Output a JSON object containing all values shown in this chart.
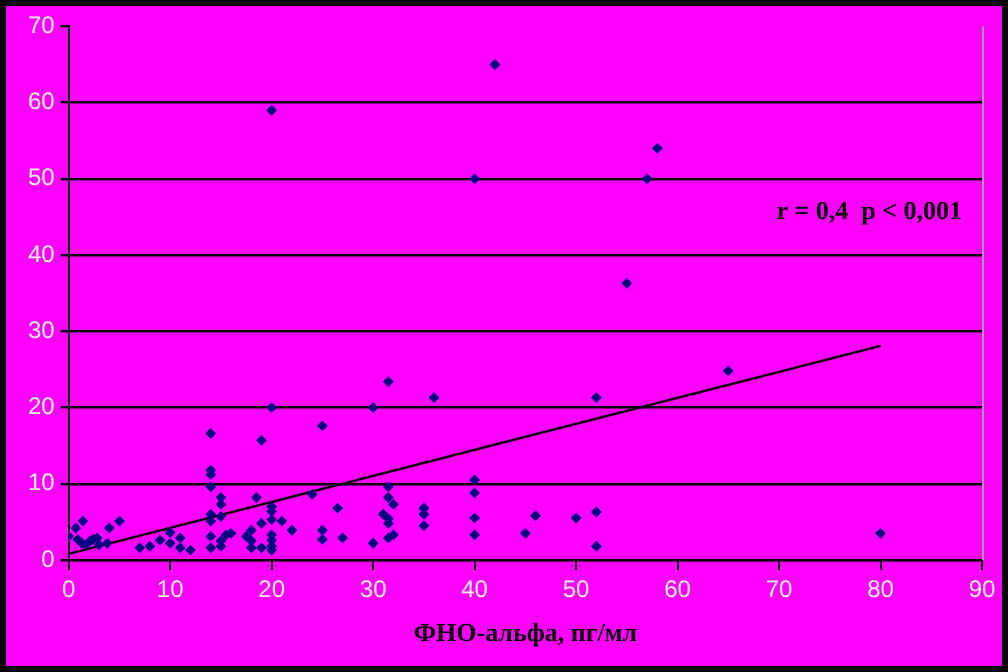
{
  "chart_data": {
    "type": "scatter",
    "xlabel": "ФНО-альфа, пг/мл",
    "annotations": [
      "r = 0,4  p < 0,001"
    ],
    "xlim": [
      0,
      90
    ],
    "xticks": [
      0,
      10,
      20,
      30,
      40,
      50,
      60,
      70,
      80,
      90
    ],
    "ylim": [
      0,
      70
    ],
    "yticks": [
      0,
      10,
      20,
      30,
      40,
      50,
      60,
      70
    ],
    "grid": "y",
    "legend": false,
    "marker": "diamond",
    "series": [
      {
        "color": "#000080",
        "x": [
          0,
          0.7,
          0.9,
          1.4,
          1.3,
          1.7,
          2.1,
          2.4,
          2.8,
          3,
          4,
          5,
          3.8,
          7,
          8,
          9,
          10,
          10,
          11,
          11,
          12,
          14,
          14,
          14,
          14,
          14,
          14,
          14,
          14,
          15,
          15,
          15,
          15,
          15,
          15.5,
          16,
          17.5,
          18,
          18,
          18,
          18.5,
          19,
          19,
          19,
          20,
          20,
          20,
          20,
          20,
          20,
          20,
          20,
          21,
          22,
          24,
          25,
          25,
          25,
          26.5,
          27,
          30,
          30,
          31,
          31.5,
          31.5,
          31.5,
          31.5,
          31.5,
          31.5,
          32,
          32,
          36,
          35,
          35,
          35,
          40,
          40,
          40,
          40,
          45,
          46,
          50,
          52,
          52,
          52,
          65,
          80,
          20,
          42,
          40,
          55,
          57,
          58
        ],
        "values": [
          3.1,
          4.2,
          2.7,
          5.1,
          2.2,
          2,
          2.5,
          2.7,
          2.9,
          2,
          4.2,
          5.1,
          2.2,
          1.6,
          1.8,
          2.6,
          2.2,
          3.6,
          2.9,
          1.6,
          1.3,
          16.6,
          11.8,
          11.2,
          9.6,
          6,
          5.1,
          3.1,
          1.6,
          8.2,
          7.3,
          5.7,
          2.5,
          1.8,
          3.3,
          3.5,
          3.1,
          3.9,
          2.5,
          1.6,
          8.2,
          15.7,
          4.8,
          1.6,
          20,
          7,
          6.4,
          5.3,
          3.3,
          2.6,
          1.8,
          1.3,
          5.1,
          3.9,
          8.6,
          17.6,
          3.9,
          2.7,
          6.8,
          2.9,
          20,
          2.2,
          6,
          23.4,
          9.6,
          8.2,
          5.4,
          4.8,
          2.9,
          3.3,
          7.3,
          21.3,
          6.8,
          6,
          4.5,
          10.5,
          8.8,
          5.5,
          3.3,
          3.5,
          5.8,
          5.5,
          21.3,
          6.3,
          1.8,
          24.8,
          3.5,
          59,
          65,
          50,
          36.3,
          50,
          54
        ]
      },
      {
        "type": "line",
        "color": "#000000",
        "marker": "none",
        "x": [
          0,
          80
        ],
        "values": [
          0.8,
          28.1
        ]
      }
    ]
  }
}
